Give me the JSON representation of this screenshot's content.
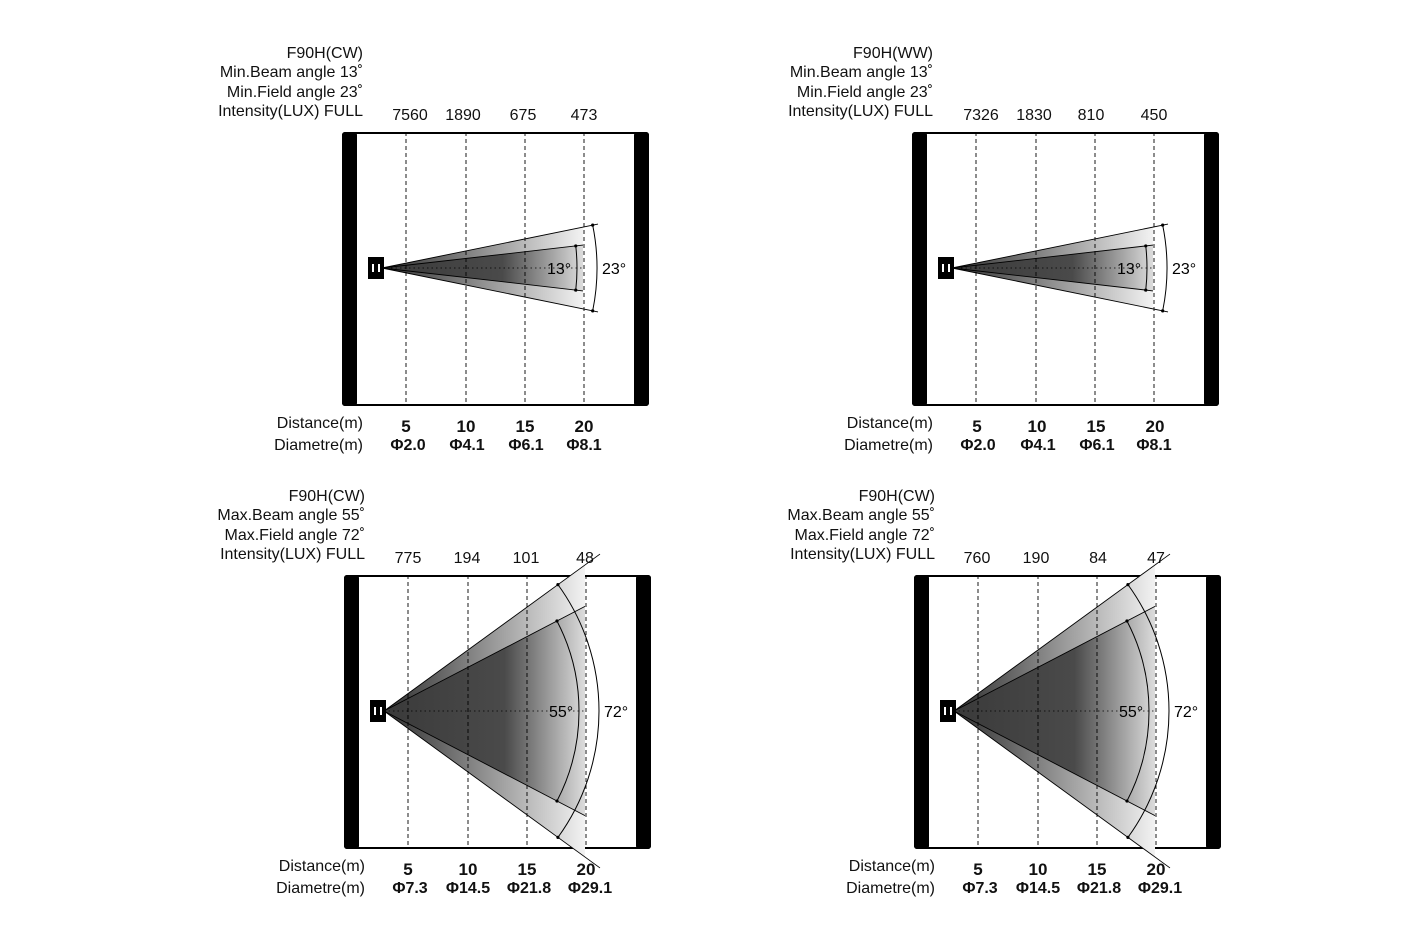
{
  "panels": [
    {
      "model": "F90H(CW)",
      "beam_line": "Min.Beam angle 13˚",
      "field_line": "Min.Field angle 23˚",
      "intensity_line": "Intensity(LUX) FULL",
      "lux": [
        "7560",
        "1890",
        "675",
        "473"
      ],
      "distance_label": "Distance(m)",
      "diameter_label": "Diametre(m)",
      "distances": [
        "5",
        "10",
        "15",
        "20"
      ],
      "diameters": [
        "Φ2.0",
        "Φ4.1",
        "Φ6.1",
        "Φ8.1"
      ],
      "beam_angle": 13,
      "field_angle": 23,
      "beam_label": "13°",
      "field_label": "23°"
    },
    {
      "model": "F90H(WW)",
      "beam_line": "Min.Beam angle 13˚",
      "field_line": "Min.Field angle 23˚",
      "intensity_line": "Intensity(LUX) FULL",
      "lux": [
        "7326",
        "1830",
        "810",
        "450"
      ],
      "distance_label": "Distance(m)",
      "diameter_label": "Diametre(m)",
      "distances": [
        "5",
        "10",
        "15",
        "20"
      ],
      "diameters": [
        "Φ2.0",
        "Φ4.1",
        "Φ6.1",
        "Φ8.1"
      ],
      "beam_angle": 13,
      "field_angle": 23,
      "beam_label": "13°",
      "field_label": "23°"
    },
    {
      "model": "F90H(CW)",
      "beam_line": "Max.Beam angle 55˚",
      "field_line": "Max.Field angle 72˚",
      "intensity_line": "Intensity(LUX) FULL",
      "lux": [
        "775",
        "194",
        "101",
        "48"
      ],
      "distance_label": "Distance(m)",
      "diameter_label": "Diametre(m)",
      "distances": [
        "5",
        "10",
        "15",
        "20"
      ],
      "diameters": [
        "Φ7.3",
        "Φ14.5",
        "Φ21.8",
        "Φ29.1"
      ],
      "beam_angle": 55,
      "field_angle": 72,
      "beam_label": "55°",
      "field_label": "72°"
    },
    {
      "model": "F90H(CW)",
      "beam_line": "Max.Beam angle 55˚",
      "field_line": "Max.Field angle 72˚",
      "intensity_line": "Intensity(LUX) FULL",
      "lux": [
        "760",
        "190",
        "84",
        "47"
      ],
      "distance_label": "Distance(m)",
      "diameter_label": "Diametre(m)",
      "distances": [
        "5",
        "10",
        "15",
        "20"
      ],
      "diameters": [
        "Φ7.3",
        "Φ14.5",
        "Φ21.8",
        "Φ29.1"
      ],
      "beam_angle": 55,
      "field_angle": 72,
      "beam_label": "55°",
      "field_label": "72°"
    }
  ]
}
